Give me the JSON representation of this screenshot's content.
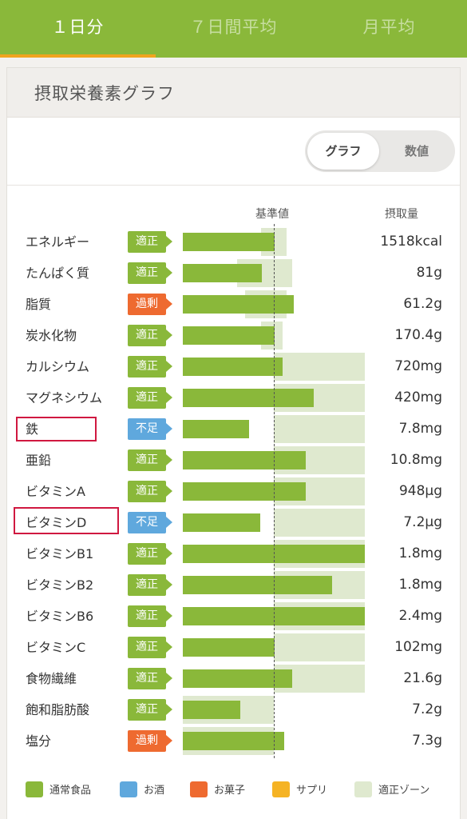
{
  "tabs": [
    {
      "label": "１日分",
      "active": true
    },
    {
      "label": "７日間平均",
      "active": false
    },
    {
      "label": "月平均",
      "active": false
    }
  ],
  "card": {
    "title": "摂取栄養素グラフ"
  },
  "toggle": {
    "graph_label": "グラフ",
    "values_label": "数値",
    "selected": "グラフ"
  },
  "columns": {
    "reference": "基準値",
    "intake": "摂取量"
  },
  "status_labels": {
    "ok": "適正",
    "over": "過剰",
    "low": "不足"
  },
  "chart_data": {
    "type": "bar",
    "reference_line": "基準値",
    "rows": [
      {
        "name": "エネルギー",
        "status": "適正",
        "status_key": "ok",
        "value": "1518kcal",
        "intake_ratio": 1.01,
        "zone": [
          0.86,
          1.14
        ]
      },
      {
        "name": "たんぱく質",
        "status": "適正",
        "status_key": "ok",
        "value": "81g",
        "intake_ratio": 0.87,
        "zone": [
          0.6,
          1.2
        ]
      },
      {
        "name": "脂質",
        "status": "過剰",
        "status_key": "over",
        "value": "61.2g",
        "intake_ratio": 1.22,
        "zone": [
          0.68,
          1.14
        ]
      },
      {
        "name": "炭水化物",
        "status": "適正",
        "status_key": "ok",
        "value": "170.4g",
        "intake_ratio": 1.01,
        "zone": [
          0.86,
          1.1
        ]
      },
      {
        "name": "カルシウム",
        "status": "適正",
        "status_key": "ok",
        "value": "720mg",
        "intake_ratio": 1.1,
        "zone": [
          1.0,
          2.0
        ]
      },
      {
        "name": "マグネシウム",
        "status": "適正",
        "status_key": "ok",
        "value": "420mg",
        "intake_ratio": 1.44,
        "zone": [
          1.0,
          2.0
        ]
      },
      {
        "name": "鉄",
        "status": "不足",
        "status_key": "low",
        "value": "7.8mg",
        "intake_ratio": 0.73,
        "zone": [
          1.0,
          2.0
        ],
        "highlighted": true
      },
      {
        "name": "亜鉛",
        "status": "適正",
        "status_key": "ok",
        "value": "10.8mg",
        "intake_ratio": 1.35,
        "zone": [
          1.0,
          2.0
        ]
      },
      {
        "name": "ビタミンA",
        "status": "適正",
        "status_key": "ok",
        "value": "948μg",
        "intake_ratio": 1.35,
        "zone": [
          1.0,
          2.0
        ]
      },
      {
        "name": "ビタミンD",
        "status": "不足",
        "status_key": "low",
        "value": "7.2μg",
        "intake_ratio": 0.85,
        "zone": [
          1.0,
          2.0
        ],
        "highlighted": true
      },
      {
        "name": "ビタミンB1",
        "status": "適正",
        "status_key": "ok",
        "value": "1.8mg",
        "intake_ratio": 2.0,
        "zone": [
          1.0,
          2.0
        ]
      },
      {
        "name": "ビタミンB2",
        "status": "適正",
        "status_key": "ok",
        "value": "1.8mg",
        "intake_ratio": 1.64,
        "zone": [
          1.0,
          2.0
        ]
      },
      {
        "name": "ビタミンB6",
        "status": "適正",
        "status_key": "ok",
        "value": "2.4mg",
        "intake_ratio": 2.0,
        "zone": [
          1.0,
          2.0
        ]
      },
      {
        "name": "ビタミンC",
        "status": "適正",
        "status_key": "ok",
        "value": "102mg",
        "intake_ratio": 1.01,
        "zone": [
          1.0,
          2.0
        ]
      },
      {
        "name": "食物繊維",
        "status": "適正",
        "status_key": "ok",
        "value": "21.6g",
        "intake_ratio": 1.2,
        "zone": [
          1.0,
          2.0
        ]
      },
      {
        "name": "飽和脂肪酸",
        "status": "適正",
        "status_key": "ok",
        "value": "7.2g",
        "intake_ratio": 0.63,
        "zone": [
          0.0,
          1.0
        ]
      },
      {
        "name": "塩分",
        "status": "過剰",
        "status_key": "over",
        "value": "7.3g",
        "intake_ratio": 1.11,
        "zone": [
          0.0,
          1.0
        ]
      }
    ]
  },
  "legend": [
    {
      "label": "通常食品",
      "color": "#8ab83a"
    },
    {
      "label": "お酒",
      "color": "#5fa8dd"
    },
    {
      "label": "お菓子",
      "color": "#ee6a30"
    },
    {
      "label": "サプリ",
      "color": "#f5b324"
    },
    {
      "label": "適正ゾーン",
      "color": "#dfe9cf"
    }
  ]
}
